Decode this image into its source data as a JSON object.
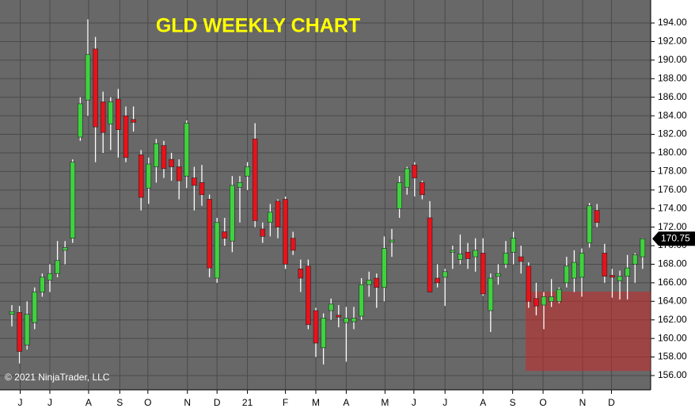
{
  "chart_data": {
    "type": "candlestick",
    "title": "GLD WEEKLY CHART",
    "copyright": "© 2021 NinjaTrader, LLC",
    "last_price": 170.75,
    "up_color": "#3fd23f",
    "down_color": "#e8121b",
    "wick_color": "#ffffff",
    "grid": true,
    "open": [
      162.6,
      162.8,
      159.3,
      161.7,
      165.0,
      166.3,
      167.0,
      169.5,
      170.8,
      181.7,
      185.7,
      191.2,
      185.5,
      183.1,
      185.8,
      184.0,
      183.6,
      179.8,
      176.2,
      178.5,
      180.8,
      179.3,
      178.5,
      177.5,
      177.3,
      176.8,
      175.0,
      166.5,
      171.5,
      170.5,
      176.3,
      177.5,
      181.5,
      171.8,
      172.5,
      174.8,
      175.0,
      170.8,
      167.5,
      167.8,
      163.0,
      159.0,
      163.0,
      162.5,
      161.7,
      161.8,
      162.4,
      165.8,
      166.5,
      165.5,
      170.4,
      174.0,
      176.3,
      178.7,
      176.8,
      173.0,
      166.5,
      166.6,
      169.3,
      168.5,
      169.3,
      168.8,
      169.2,
      163.0,
      166.7,
      168.0,
      169.3,
      168.8,
      167.8,
      164.3,
      163.6,
      164.0,
      164.0,
      166.0,
      166.5,
      166.6,
      170.3,
      173.8,
      169.2,
      166.8,
      166.2,
      166.7,
      168.0,
      168.8
    ],
    "high": [
      163.6,
      163.5,
      164.0,
      165.5,
      167.0,
      168.0,
      170.5,
      170.5,
      179.3,
      186.0,
      194.4,
      192.5,
      186.6,
      186.0,
      186.9,
      185.0,
      185.0,
      180.3,
      179.5,
      181.5,
      181.3,
      180.0,
      179.3,
      183.5,
      178.5,
      178.7,
      175.5,
      173.0,
      173.0,
      177.5,
      177.5,
      179.0,
      183.2,
      172.5,
      174.5,
      175.0,
      175.3,
      171.5,
      168.5,
      168.5,
      163.3,
      162.7,
      164.3,
      163.6,
      163.4,
      163.4,
      166.5,
      167.2,
      167.0,
      171.0,
      171.8,
      177.5,
      178.5,
      179.0,
      177.0,
      174.8,
      168.0,
      167.5,
      170.0,
      171.2,
      170.3,
      170.8,
      170.8,
      167.0,
      168.0,
      170.5,
      171.5,
      170.0,
      168.2,
      166.0,
      165.0,
      166.4,
      165.5,
      168.8,
      169.5,
      169.7,
      174.6,
      174.5,
      170.2,
      167.5,
      167.3,
      169.0,
      169.2,
      170.8
    ],
    "low": [
      161.3,
      157.3,
      158.8,
      161.0,
      164.5,
      165.0,
      166.6,
      168.0,
      170.3,
      181.3,
      184.0,
      179.0,
      180.0,
      180.3,
      179.5,
      179.0,
      182.3,
      173.8,
      174.5,
      176.8,
      177.3,
      177.0,
      175.0,
      176.2,
      173.8,
      174.3,
      166.6,
      166.0,
      170.0,
      169.3,
      172.5,
      176.0,
      172.0,
      170.3,
      171.0,
      170.8,
      167.5,
      169.0,
      165.0,
      161.0,
      158.0,
      157.2,
      162.0,
      161.2,
      157.5,
      161.0,
      162.0,
      164.5,
      163.3,
      164.0,
      168.8,
      173.0,
      175.5,
      175.3,
      175.0,
      165.0,
      165.5,
      163.5,
      167.5,
      168.0,
      167.5,
      167.2,
      164.6,
      160.7,
      165.8,
      167.6,
      168.0,
      167.0,
      163.3,
      162.5,
      161.0,
      163.4,
      163.8,
      165.5,
      165.0,
      164.5,
      169.8,
      172.0,
      166.0,
      164.4,
      164.2,
      164.2,
      166.0,
      167.5
    ],
    "close": [
      162.9,
      158.6,
      162.6,
      165.0,
      166.6,
      167.0,
      168.4,
      169.8,
      179.0,
      185.3,
      190.6,
      182.8,
      182.2,
      185.5,
      182.5,
      179.5,
      183.3,
      175.2,
      178.8,
      181.0,
      178.3,
      178.5,
      177.0,
      183.2,
      176.5,
      175.5,
      167.6,
      172.5,
      170.8,
      176.5,
      176.8,
      178.5,
      172.7,
      171.0,
      173.6,
      172.0,
      168.0,
      169.5,
      166.5,
      161.5,
      159.5,
      162.2,
      163.7,
      162.3,
      162.2,
      162.2,
      165.8,
      166.3,
      165.5,
      169.7,
      170.6,
      176.8,
      178.3,
      177.3,
      175.5,
      165.0,
      166.0,
      167.2,
      169.5,
      169.1,
      168.6,
      169.5,
      164.8,
      166.5,
      167.0,
      169.2,
      170.8,
      168.3,
      164.0,
      163.5,
      164.5,
      164.5,
      165.3,
      167.8,
      168.2,
      169.2,
      174.3,
      172.5,
      166.7,
      166.6,
      166.7,
      167.6,
      169.0,
      170.75
    ],
    "zone": {
      "x": [
        67.6,
        84.06
      ],
      "y": [
        156.5,
        165.05
      ],
      "color": "rgba(200,40,40,0.55)"
    },
    "xlim": [
      -1.56,
      84.06
    ],
    "xticks": [
      {
        "value": 1.1,
        "label": "J"
      },
      {
        "value": 5.0,
        "label": "J"
      },
      {
        "value": 10.1,
        "label": "A"
      },
      {
        "value": 14.2,
        "label": "S"
      },
      {
        "value": 17.9,
        "label": "O"
      },
      {
        "value": 23.1,
        "label": "N"
      },
      {
        "value": 27.0,
        "label": "D"
      },
      {
        "value": 31.0,
        "label": "21"
      },
      {
        "value": 36.0,
        "label": "F"
      },
      {
        "value": 40.0,
        "label": "M"
      },
      {
        "value": 44.0,
        "label": "A"
      },
      {
        "value": 49.1,
        "label": "M"
      },
      {
        "value": 52.9,
        "label": "J"
      },
      {
        "value": 57.0,
        "label": "J"
      },
      {
        "value": 62.0,
        "label": "A"
      },
      {
        "value": 65.9,
        "label": "S"
      },
      {
        "value": 69.9,
        "label": "O"
      },
      {
        "value": 75.1,
        "label": "N"
      },
      {
        "value": 78.9,
        "label": "D"
      }
    ],
    "ylim": [
      154.46,
      196.48
    ],
    "yticks": [
      {
        "value": 156,
        "label": "156.00"
      },
      {
        "value": 158,
        "label": "158.00"
      },
      {
        "value": 160,
        "label": "160.00"
      },
      {
        "value": 162,
        "label": "162.00"
      },
      {
        "value": 164,
        "label": "164.00"
      },
      {
        "value": 166,
        "label": "166.00"
      },
      {
        "value": 168,
        "label": "168.00"
      },
      {
        "value": 170,
        "label": "170.00"
      },
      {
        "value": 172,
        "label": "172.00"
      },
      {
        "value": 174,
        "label": "174.00"
      },
      {
        "value": 176,
        "label": "176.00"
      },
      {
        "value": 178,
        "label": "178.00"
      },
      {
        "value": 180,
        "label": "180.00"
      },
      {
        "value": 182,
        "label": "182.00"
      },
      {
        "value": 184,
        "label": "184.00"
      },
      {
        "value": 186,
        "label": "186.00"
      },
      {
        "value": 188,
        "label": "188.00"
      },
      {
        "value": 190,
        "label": "190.00"
      },
      {
        "value": 192,
        "label": "192.00"
      },
      {
        "value": 194,
        "label": "194.00"
      }
    ]
  }
}
